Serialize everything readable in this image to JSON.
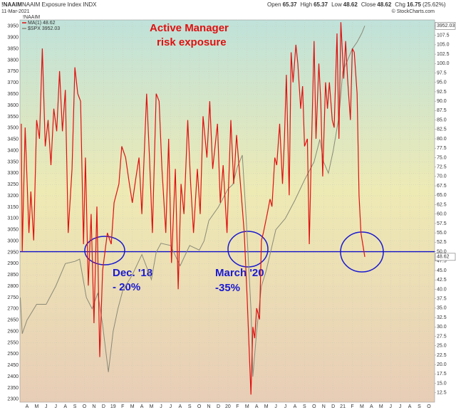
{
  "header": {
    "symbol": "!NAAIM",
    "name": "NAAIM Exposure Index INDX",
    "date": "11-Mar-2021",
    "quote": [
      {
        "label": "Open",
        "value": 65.37
      },
      {
        "label": "High",
        "value": 65.37
      },
      {
        "label": "Low",
        "value": 48.62
      },
      {
        "label": "Close",
        "value": 48.62
      },
      {
        "label": "Chg",
        "value": 16.75
      }
    ],
    "change_pct": "(25.62%)",
    "credit": "© StockCharts.com"
  },
  "chart_data": {
    "type": "line",
    "annotations": {
      "headline": [
        "Active Manager",
        "risk exposure"
      ],
      "dec18": [
        "Dec. '18",
        "- 20%"
      ],
      "mar20": [
        "March '20",
        "-35%"
      ]
    },
    "legend_title": "!NAAIM",
    "grid": true,
    "xlim": [
      -0.74,
      42.6
    ],
    "ylim": [
      2287,
      3978
    ],
    "y2lim": [
      10,
      111.6
    ],
    "hline": {
      "value": 50,
      "axis": "y2",
      "color": "#1010c8"
    },
    "xticks": [
      {
        "value": 0,
        "label": "A"
      },
      {
        "value": 1,
        "label": "M"
      },
      {
        "value": 2,
        "label": "J"
      },
      {
        "value": 3,
        "label": "J"
      },
      {
        "value": 4,
        "label": "A"
      },
      {
        "value": 5,
        "label": "S"
      },
      {
        "value": 6,
        "label": "O"
      },
      {
        "value": 7,
        "label": "N"
      },
      {
        "value": 8,
        "label": "D"
      },
      {
        "value": 9,
        "label": "19"
      },
      {
        "value": 10,
        "label": "F"
      },
      {
        "value": 11,
        "label": "M"
      },
      {
        "value": 12,
        "label": "A"
      },
      {
        "value": 13,
        "label": "M"
      },
      {
        "value": 14,
        "label": "J"
      },
      {
        "value": 15,
        "label": "J"
      },
      {
        "value": 16,
        "label": "A"
      },
      {
        "value": 17,
        "label": "S"
      },
      {
        "value": 18,
        "label": "O"
      },
      {
        "value": 19,
        "label": "N"
      },
      {
        "value": 20,
        "label": "D"
      },
      {
        "value": 21,
        "label": "20"
      },
      {
        "value": 22,
        "label": "F"
      },
      {
        "value": 23,
        "label": "M"
      },
      {
        "value": 24,
        "label": "A"
      },
      {
        "value": 25,
        "label": "M"
      },
      {
        "value": 26,
        "label": "J"
      },
      {
        "value": 27,
        "label": "J"
      },
      {
        "value": 28,
        "label": "A"
      },
      {
        "value": 29,
        "label": "S"
      },
      {
        "value": 30,
        "label": "O"
      },
      {
        "value": 31,
        "label": "N"
      },
      {
        "value": 32,
        "label": "D"
      },
      {
        "value": 33,
        "label": "21"
      },
      {
        "value": 34,
        "label": "F"
      },
      {
        "value": 35,
        "label": "M"
      },
      {
        "value": 36,
        "label": "A"
      },
      {
        "value": 37,
        "label": "M"
      },
      {
        "value": 38,
        "label": "J"
      },
      {
        "value": 39,
        "label": "J"
      },
      {
        "value": 40,
        "label": "A"
      },
      {
        "value": 41,
        "label": "S"
      },
      {
        "value": 42,
        "label": "O"
      }
    ],
    "yticks": [
      2300,
      2350,
      2400,
      2450,
      2500,
      2550,
      2600,
      2650,
      2700,
      2750,
      2800,
      2850,
      2900,
      2950,
      3000,
      3050,
      3100,
      3150,
      3200,
      3250,
      3300,
      3350,
      3400,
      3450,
      3500,
      3550,
      3600,
      3650,
      3700,
      3750,
      3800,
      3850,
      3900,
      3950
    ],
    "y2ticks": [
      12.5,
      {
        "value": 15,
        "label": "15.0"
      },
      17.5,
      {
        "value": 20,
        "label": "20.0"
      },
      22.5,
      {
        "value": 25,
        "label": "25.0"
      },
      27.5,
      {
        "value": 30,
        "label": "30.0"
      },
      32.5,
      {
        "value": 35,
        "label": "35.0"
      },
      37.5,
      {
        "value": 40,
        "label": "40.0"
      },
      42.5,
      {
        "value": 45,
        "label": "45.0"
      },
      47.5,
      {
        "value": 50,
        "label": "50.0"
      },
      52.5,
      {
        "value": 55,
        "label": "55.0"
      },
      57.5,
      {
        "value": 60,
        "label": "60.0"
      },
      62.5,
      {
        "value": 65,
        "label": "65.0"
      },
      67.5,
      {
        "value": 70,
        "label": "70.0"
      },
      72.5,
      {
        "value": 75,
        "label": "75.0"
      },
      77.5,
      {
        "value": 80,
        "label": "80.0"
      },
      82.5,
      {
        "value": 85,
        "label": "85.0"
      },
      87.5,
      {
        "value": 90,
        "label": "90.0"
      },
      92.5,
      {
        "value": 95,
        "label": "95.0"
      },
      97.5,
      {
        "value": 100,
        "label": "100.0"
      },
      102.5,
      {
        "value": 105,
        "label": "105.0"
      },
      107.5,
      {
        "value": 110,
        "label": "110.0"
      }
    ],
    "series": [
      {
        "name": "MA(1) 48.62",
        "color": "#e01010",
        "axis": "y2",
        "x": [
          -0.6,
          -0.5,
          -0.2,
          0.2,
          0.4,
          0.7,
          1.0,
          1.3,
          1.6,
          1.9,
          2.2,
          2.5,
          2.8,
          3.1,
          3.4,
          3.7,
          4.0,
          4.3,
          4.7,
          5.0,
          5.3,
          5.6,
          5.9,
          6.1,
          6.4,
          6.7,
          7.0,
          7.3,
          7.6,
          7.9,
          8.4,
          8.8,
          9.1,
          9.6,
          9.9,
          10.3,
          10.7,
          11.0,
          11.4,
          11.7,
          12.0,
          12.5,
          12.8,
          13.1,
          13.5,
          13.8,
          14.1,
          14.5,
          14.8,
          15.1,
          15.5,
          15.8,
          16.1,
          16.4,
          16.8,
          17.1,
          17.4,
          17.8,
          18.1,
          18.4,
          18.8,
          19.1,
          19.4,
          19.9,
          20.2,
          20.5,
          20.9,
          21.3,
          21.6,
          21.9,
          22.4,
          22.7,
          23.0,
          23.4,
          23.6,
          23.8,
          24.0,
          24.3,
          24.5,
          24.7,
          25.1,
          25.4,
          25.6,
          25.9,
          26.1,
          26.4,
          26.7,
          26.9,
          27.1,
          27.4,
          27.6,
          27.8,
          28.1,
          28.3,
          28.6,
          28.8,
          29.0,
          29.3,
          29.5,
          29.7,
          30.0,
          30.2,
          30.5,
          30.7,
          30.9,
          31.2,
          31.4,
          31.6,
          31.9,
          32.1,
          32.4,
          32.6,
          32.8,
          33.1,
          33.3,
          33.5,
          33.8,
          34.0,
          34.2,
          34.5,
          34.7,
          34.9,
          35.3
        ],
        "values": [
          84,
          50,
          83,
          55,
          66,
          53,
          85,
          80,
          104,
          78,
          85,
          73,
          88,
          82,
          98,
          82,
          93,
          55,
          72,
          99,
          92,
          90,
          52,
          75,
          41,
          60,
          31,
          62,
          22,
          45,
          55,
          52,
          63,
          68,
          78,
          75,
          68,
          63,
          70,
          75,
          60,
          92,
          75,
          55,
          92,
          90,
          72,
          55,
          80,
          47,
          72,
          40,
          68,
          60,
          85,
          68,
          55,
          72,
          60,
          86,
          75,
          90,
          72,
          84,
          63,
          73,
          55,
          85,
          68,
          81,
          65,
          55,
          38,
          12,
          30,
          27,
          35,
          32,
          53,
          55,
          60,
          64,
          62,
          75,
          73,
          84,
          68,
          80,
          97,
          65,
          103,
          95,
          105,
          100,
          88,
          94,
          78,
          80,
          52,
          75,
          106,
          80,
          100,
          90,
          70,
          95,
          88,
          95,
          85,
          83,
          108,
          80,
          111,
          96,
          106,
          96,
          85,
          104,
          103,
          92,
          65,
          55,
          48.62
        ]
      },
      {
        "name": "$SPX 3952.03",
        "color": "#8a8a78",
        "x": [
          -0.7,
          -0.5,
          0,
          1,
          2,
          3,
          4,
          5,
          5.5,
          6.2,
          6.8,
          7.4,
          7.9,
          8.5,
          9,
          9.5,
          10,
          11,
          12,
          13,
          13.5,
          14,
          15,
          16,
          17,
          18,
          18.5,
          19,
          20,
          21,
          21.5,
          22,
          22.5,
          22.9,
          23.4,
          23.6,
          24,
          24.5,
          25,
          26,
          27,
          28,
          29,
          30,
          30.6,
          31,
          31.5,
          32,
          32.6,
          33,
          33.5,
          34,
          34.5,
          35,
          35.3
        ],
        "values": [
          2750,
          2590,
          2650,
          2720,
          2720,
          2800,
          2900,
          2910,
          2920,
          2750,
          2700,
          2770,
          2630,
          2420,
          2600,
          2700,
          2780,
          2850,
          2940,
          2830,
          2950,
          2990,
          2980,
          2890,
          2980,
          2960,
          3000,
          3090,
          3150,
          3230,
          3250,
          3330,
          3380,
          3100,
          2700,
          2400,
          2600,
          2800,
          2870,
          3050,
          3100,
          3180,
          3270,
          3350,
          3450,
          3350,
          3300,
          3400,
          3550,
          3750,
          3800,
          3850,
          3880,
          3920,
          3952.03
        ]
      }
    ]
  }
}
